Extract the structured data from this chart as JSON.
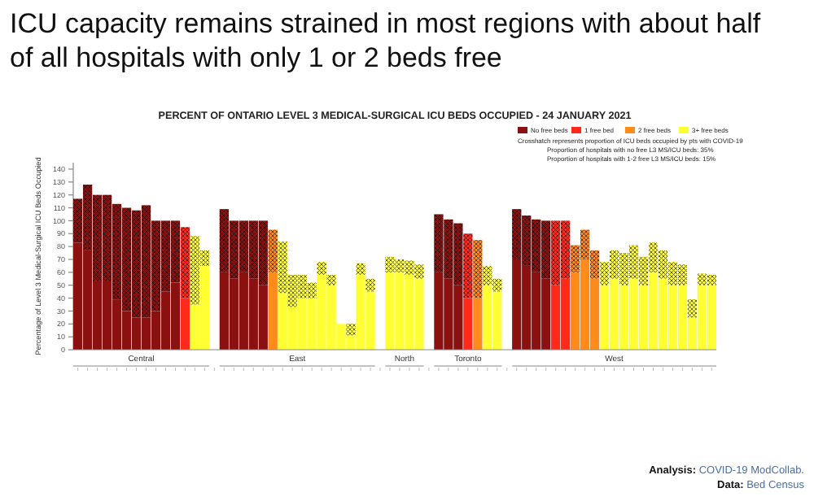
{
  "chart_data": {
    "type": "bar",
    "stacked": true,
    "title": "ICU capacity remains strained in most regions with about half of all hospitals with only 1 or 2 beds free",
    "subtitle": "PERCENT OF ONTARIO LEVEL 3 MEDICAL-SURGICAL ICU BEDS OCCUPIED - 24 JANUARY 2021",
    "ylabel": "Percentage of Level 3 Medical-Surgical ICU Beds Occupied",
    "categories": [
      null,
      null,
      null,
      null,
      null,
      null,
      null,
      null,
      null,
      null,
      null,
      null,
      null,
      null,
      null,
      null,
      null,
      null,
      null,
      null,
      null,
      null,
      null,
      null,
      null,
      null,
      null,
      null,
      null,
      null,
      null,
      null,
      null,
      null,
      null,
      null,
      null,
      null,
      null,
      null,
      null,
      null,
      null,
      null,
      null,
      null,
      null,
      null,
      null,
      null,
      null,
      null,
      null,
      null,
      null,
      null,
      null,
      null,
      null,
      null,
      null,
      null,
      null,
      null,
      null,
      null
    ],
    "series": [
      {
        "name": "No free beds",
        "color": "#8b1111",
        "values": [
          83,
          77,
          53,
          53,
          39,
          30,
          25,
          25,
          30,
          45,
          52,
          null,
          null,
          null,
          null,
          60,
          55,
          60,
          55,
          50,
          null,
          null,
          null,
          null,
          null,
          null,
          null,
          null,
          null,
          null,
          null,
          null,
          null,
          null,
          null,
          null,
          null,
          60,
          55,
          50,
          null,
          null,
          null,
          null,
          null,
          70,
          65,
          60,
          55,
          null,
          null,
          null,
          null,
          null,
          null,
          null,
          null,
          null,
          null,
          null,
          null,
          null,
          null,
          null,
          null,
          null
        ]
      },
      {
        "color": "#8b1111",
        "values": [
          34,
          51,
          67,
          67,
          74,
          80,
          83,
          87,
          70,
          55,
          48,
          null,
          null,
          null,
          null,
          49,
          45,
          40,
          45,
          50,
          null,
          null,
          null,
          null,
          null,
          null,
          null,
          null,
          null,
          null,
          null,
          null,
          null,
          null,
          null,
          null,
          null,
          45,
          46,
          48,
          null,
          null,
          null,
          null,
          null,
          39,
          39,
          41,
          45,
          null,
          null,
          null,
          null,
          null,
          null,
          null,
          null,
          null,
          null,
          null,
          null,
          null,
          null,
          null,
          null,
          null
        ]
      },
      {
        "name": "1 free bed",
        "color": "#ff2a1a",
        "values": [
          null,
          null,
          null,
          null,
          null,
          null,
          null,
          null,
          null,
          null,
          null,
          40,
          null,
          null,
          null,
          null,
          null,
          null,
          null,
          null,
          null,
          null,
          null,
          null,
          null,
          null,
          null,
          null,
          null,
          null,
          null,
          null,
          null,
          null,
          null,
          null,
          null,
          null,
          null,
          null,
          40,
          null,
          null,
          null,
          null,
          null,
          null,
          null,
          null,
          50,
          55,
          null,
          null,
          null,
          null,
          null,
          null,
          null,
          null,
          null,
          null,
          null,
          null,
          null,
          null,
          null
        ]
      },
      {
        "color": "#ff2a1a",
        "values": [
          null,
          null,
          null,
          null,
          null,
          null,
          null,
          null,
          null,
          null,
          null,
          55,
          null,
          null,
          null,
          null,
          null,
          null,
          null,
          null,
          null,
          null,
          null,
          null,
          null,
          null,
          null,
          null,
          null,
          null,
          null,
          null,
          null,
          null,
          null,
          null,
          null,
          null,
          null,
          null,
          50,
          null,
          null,
          null,
          null,
          null,
          null,
          null,
          null,
          50,
          45,
          null,
          null,
          null,
          null,
          null,
          null,
          null,
          null,
          null,
          null,
          null,
          null,
          null,
          null,
          null
        ]
      },
      {
        "name": "2 free beds",
        "color": "#ff8c1a",
        "values": [
          null,
          null,
          null,
          null,
          null,
          null,
          null,
          null,
          null,
          null,
          null,
          null,
          null,
          null,
          null,
          null,
          null,
          null,
          null,
          null,
          60,
          null,
          null,
          null,
          null,
          null,
          null,
          null,
          null,
          null,
          null,
          null,
          null,
          null,
          null,
          null,
          null,
          null,
          null,
          null,
          null,
          40,
          null,
          null,
          null,
          null,
          null,
          null,
          null,
          null,
          null,
          60,
          70,
          55,
          null,
          null,
          null,
          null,
          null,
          null,
          null,
          null,
          null,
          null,
          null,
          null
        ]
      },
      {
        "color": "#ff8c1a",
        "values": [
          null,
          null,
          null,
          null,
          null,
          null,
          null,
          null,
          null,
          null,
          null,
          null,
          null,
          null,
          null,
          null,
          null,
          null,
          null,
          null,
          33,
          null,
          null,
          null,
          null,
          null,
          null,
          null,
          null,
          null,
          null,
          null,
          null,
          null,
          null,
          null,
          null,
          null,
          null,
          null,
          null,
          45,
          null,
          null,
          null,
          null,
          null,
          null,
          null,
          null,
          null,
          21,
          23,
          22,
          null,
          null,
          null,
          null,
          null,
          null,
          null,
          null,
          null,
          null,
          null,
          null
        ]
      },
      {
        "name": "3+ free beds",
        "color": "#ffff33",
        "values": [
          null,
          null,
          null,
          null,
          null,
          null,
          null,
          null,
          null,
          null,
          null,
          null,
          35,
          65,
          null,
          null,
          null,
          null,
          null,
          null,
          null,
          44,
          33,
          40,
          40,
          58,
          50,
          20,
          11,
          58,
          45,
          null,
          60,
          60,
          58,
          55,
          null,
          null,
          null,
          null,
          null,
          null,
          50,
          45,
          null,
          null,
          null,
          null,
          null,
          null,
          null,
          null,
          null,
          null,
          50,
          55,
          50,
          55,
          50,
          60,
          55,
          50,
          50,
          25,
          50,
          50
        ]
      },
      {
        "color": "#ffff33",
        "values": [
          null,
          null,
          null,
          null,
          null,
          null,
          null,
          null,
          null,
          null,
          null,
          null,
          53,
          12,
          null,
          null,
          null,
          null,
          null,
          null,
          null,
          40,
          25,
          18,
          12,
          10,
          8,
          0,
          9,
          9,
          10,
          null,
          12,
          10,
          11,
          11,
          null,
          null,
          null,
          null,
          null,
          null,
          15,
          10,
          null,
          null,
          null,
          null,
          null,
          null,
          null,
          null,
          null,
          null,
          18,
          22,
          25,
          26,
          22,
          23,
          22,
          18,
          16,
          14,
          9,
          8
        ]
      }
    ],
    "ylim": [
      0,
      145
    ],
    "yticks": [
      0,
      10,
      20,
      30,
      40,
      50,
      60,
      70,
      80,
      90,
      100,
      110,
      120,
      130,
      140
    ],
    "legend": "top right",
    "annotations": [
      "Crosshatch represents proportion of ICU beds occupied by pts with COVID-19",
      "Proportion of hospitals with no free L3 MS/ICU beds: 35%",
      "Proportion of hospitals with 1-2 free L3 MS/ICU beds: 15%",
      "Analysis: COVID-19 ModCollab.",
      "Data: Bed Census",
      "Central",
      "East",
      "North",
      "Toronto",
      "West"
    ]
  }
}
